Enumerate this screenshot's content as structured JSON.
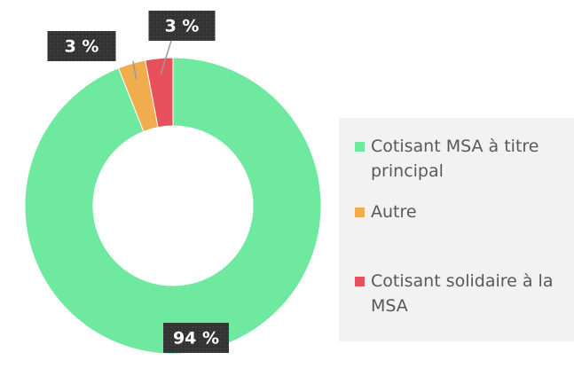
{
  "chart_data": {
    "type": "donut",
    "categories": [
      "Cotisant MSA à titre principal",
      "Autre",
      "Cotisant solidaire à la MSA"
    ],
    "values": [
      94,
      3,
      3
    ],
    "value_labels": [
      "94 %",
      "3 %",
      "3 %"
    ],
    "colors": [
      "#6fe99f",
      "#f1ad4d",
      "#e8505b"
    ],
    "legend": "right"
  }
}
